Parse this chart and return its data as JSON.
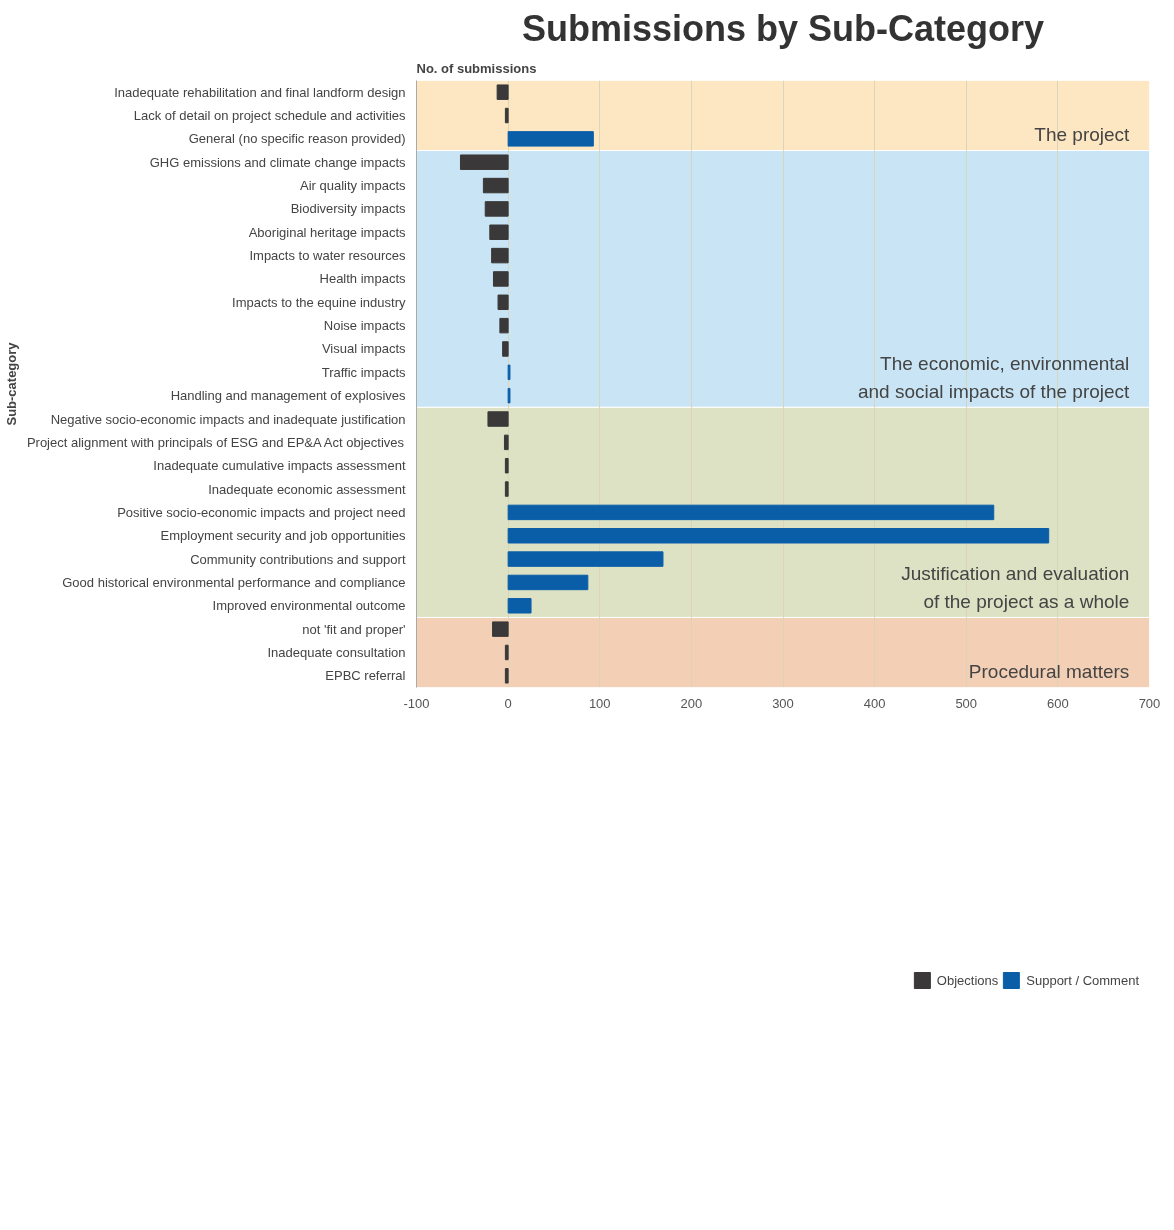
{
  "chart_data": {
    "type": "bar",
    "orientation": "horizontal",
    "title": "Submissions by Sub-Category",
    "xlabel": "No. of submissions",
    "ylabel": "Sub-category",
    "categories": [
      "Inadequate rehabilitation and final landform design",
      "Lack of detail on project schedule and activities",
      "General (no specific reason provided)",
      "GHG emissions and climate change impacts",
      "Air quality impacts",
      "Biodiversity impacts",
      "Aboriginal heritage impacts",
      "Impacts to water resources",
      "Health impacts",
      "Impacts to the equine industry",
      "Noise impacts",
      "Visual impacts",
      "Traffic impacts",
      "Handling and management of explosives",
      "Negative socio-economic impacts and inadequate justification",
      "Project alignment with principals of ESG and EP&A Act objectives",
      "Inadequate cumulative impacts assessment",
      "Inadequate economic assessment",
      "Positive socio-economic impacts and project need",
      "Employment security and job opportunities",
      "Community contributions and support",
      "Good historical environmental performance and compliance",
      "Improved environmental outcome",
      "not 'fit and proper'",
      "Inadequate consultation",
      "EPBC referral"
    ],
    "series": [
      {
        "name": "Objections",
        "color": "#3a3838",
        "values": [
          -12,
          -3,
          null,
          -52,
          -27,
          -25,
          -20,
          -18,
          -16,
          -11,
          -9,
          -6,
          null,
          null,
          -22,
          -4,
          -3,
          -3,
          null,
          null,
          null,
          null,
          null,
          -17,
          -3,
          -3
        ]
      },
      {
        "name": "Support / Comment",
        "color": "#0a5ea8",
        "values": [
          null,
          null,
          93,
          null,
          null,
          null,
          null,
          null,
          null,
          null,
          null,
          null,
          2,
          2,
          null,
          null,
          null,
          null,
          530,
          590,
          169,
          87,
          25,
          null,
          null,
          null
        ]
      }
    ],
    "xlim": [
      -100,
      700
    ],
    "xticks": [
      -100,
      0,
      100,
      200,
      300,
      400,
      500,
      600,
      700
    ],
    "bands": [
      {
        "axis": "y",
        "from": "Inadequate rehabilitation and final landform design",
        "to": "General (no specific reason provided)",
        "label": "The project",
        "color": "#fde7c2"
      },
      {
        "axis": "y",
        "from": "GHG emissions and climate change impacts",
        "to": "Handling and management of explosives",
        "label": "The economic, environmental\nand social impacts of the project",
        "color": "#c9e5f5"
      },
      {
        "axis": "y",
        "from": "Negative socio-economic impacts and inadequate justification",
        "to": "Improved environmental outcome",
        "label": "Justification and evaluation\nof the project as a whole",
        "color": "#dde2c4"
      },
      {
        "axis": "y",
        "from": "not 'fit and proper'",
        "to": "EPBC referral",
        "label": "Procedural matters",
        "color": "#f3cfb5"
      }
    ],
    "grid": "x",
    "legend": "bottom"
  }
}
